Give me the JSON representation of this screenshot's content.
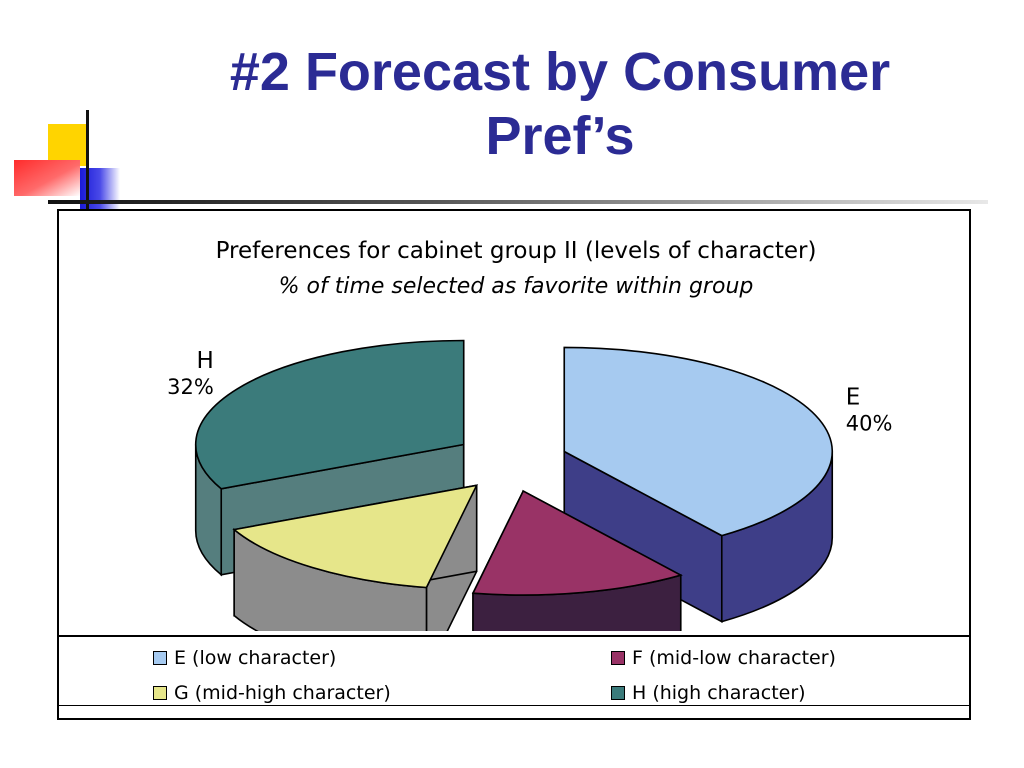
{
  "page": {
    "title_line1": "#2 Forecast by Consumer",
    "title_line2": "Pref’s"
  },
  "chart_data": {
    "type": "pie",
    "style": "3d-exploded",
    "title": "Preferences for cabinet group II (levels of character)",
    "subtitle": "% of time selected as favorite within group",
    "slices": [
      {
        "label": "E",
        "value": 40,
        "value_label": "40%",
        "legend": "E (low character)",
        "color": "#a6caf0",
        "side_color": "#3e3e88"
      },
      {
        "label": "F",
        "value": 13,
        "value_label": "13%",
        "legend": "F (mid-low character)",
        "color": "#993366",
        "side_color": "#3c2040"
      },
      {
        "label": "G",
        "value": 15,
        "value_label": "15%",
        "legend": "G (mid-high character)",
        "color": "#e6e68a",
        "side_color": "#8c8c8c"
      },
      {
        "label": "H",
        "value": 32,
        "value_label": "32%",
        "legend": "H (high character)",
        "color": "#3b7b7b",
        "side_color": "#557e7e"
      }
    ],
    "legend_position": "bottom"
  }
}
